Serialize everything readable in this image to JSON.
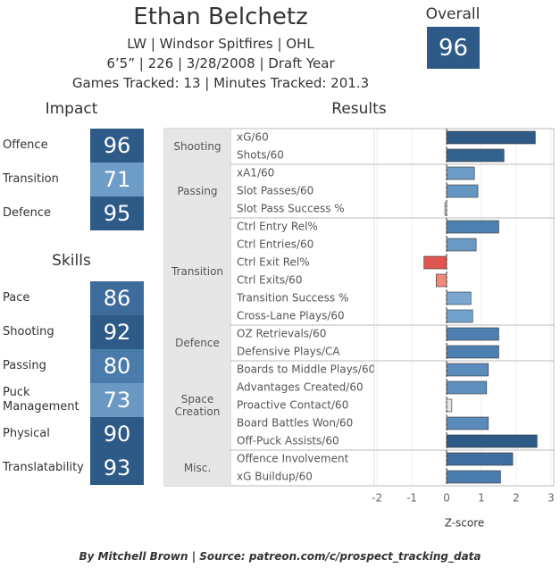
{
  "header": {
    "name": "Ethan Belchetz",
    "line1": "LW | Windsor Spitfires | OHL",
    "line2": "6’5” | 226 | 3/28/2008 |  Draft Year",
    "line3": "Games Tracked: 13 | Minutes Tracked: 201.3"
  },
  "overall": {
    "label": "Overall",
    "value": 96,
    "color": "#2e5a87"
  },
  "impact": {
    "title": "Impact",
    "items": [
      {
        "label": "Offence",
        "value": 96,
        "color": "#2e5a87"
      },
      {
        "label": "Transition",
        "value": 71,
        "color": "#6d9cc6"
      },
      {
        "label": "Defence",
        "value": 95,
        "color": "#2e5a87"
      }
    ]
  },
  "skills": {
    "title": "Skills",
    "items": [
      {
        "label": "Pace",
        "value": 86,
        "color": "#3d6c9c"
      },
      {
        "label": "Shooting",
        "value": 92,
        "color": "#2e5a87"
      },
      {
        "label": "Passing",
        "value": 80,
        "color": "#4a7cab"
      },
      {
        "label": "Puck Management",
        "value": 73,
        "color": "#6a98c2"
      },
      {
        "label": "Physical",
        "value": 90,
        "color": "#2e5a87"
      },
      {
        "label": "Translatability",
        "value": 93,
        "color": "#2e5a87"
      }
    ]
  },
  "chart_data": {
    "type": "hbar",
    "title": "Results",
    "xlabel": "Z-score",
    "xlim": [
      -2.08,
      3.08
    ],
    "xticks": [
      -2,
      -1,
      0,
      1,
      2,
      3
    ],
    "grid": true,
    "groups": [
      {
        "name": "Shooting",
        "categories": [
          "xG/60",
          "Shots/60"
        ],
        "values": [
          2.55,
          1.65
        ],
        "colors": [
          "#2e5a87",
          "#34628f"
        ]
      },
      {
        "name": "Passing",
        "categories": [
          "xA1/60",
          "Slot Passes/60",
          "Slot Pass Success %"
        ],
        "values": [
          0.8,
          0.9,
          -0.05
        ],
        "colors": [
          "#6d9cc6",
          "#6496c2",
          "#e4e4e4"
        ]
      },
      {
        "name": "Transition",
        "categories": [
          "Ctrl Entry Rel%",
          "Ctrl Entries/60",
          "Ctrl Exit Rel%",
          "Ctrl Exits/60",
          "Transition Success %",
          "Cross-Lane Plays/60"
        ],
        "values": [
          1.5,
          0.85,
          -0.65,
          -0.3,
          0.7,
          0.75
        ],
        "colors": [
          "#4d80b0",
          "#6a99c4",
          "#e0554f",
          "#f08a7a",
          "#79a7d0",
          "#72a1cb"
        ]
      },
      {
        "name": "Defence",
        "categories": [
          "OZ Retrievals/60",
          "Defensive Plays/CA"
        ],
        "values": [
          1.5,
          1.5
        ],
        "colors": [
          "#4d80b0",
          "#4d80b0"
        ]
      },
      {
        "name": "Space Creation",
        "categories": [
          "Boards to Middle Plays/60",
          "Advantages Created/60",
          "Proactive Contact/60",
          "Board Battles Won/60",
          "Off-Puck Assists/60"
        ],
        "values": [
          1.2,
          1.15,
          0.15,
          1.2,
          2.6
        ],
        "colors": [
          "#5a8bba",
          "#5d8ebc",
          "#e4e4e4",
          "#5a8bba",
          "#2e5a87"
        ]
      },
      {
        "name": "Misc.",
        "categories": [
          "Offence Involvement",
          "xG Buildup/60"
        ],
        "values": [
          1.9,
          1.55
        ],
        "colors": [
          "#3e6e9f",
          "#4a7dae"
        ]
      }
    ]
  },
  "credit": "By Mitchell Brown | Source: patreon.com/c/prospect_tracking_data"
}
